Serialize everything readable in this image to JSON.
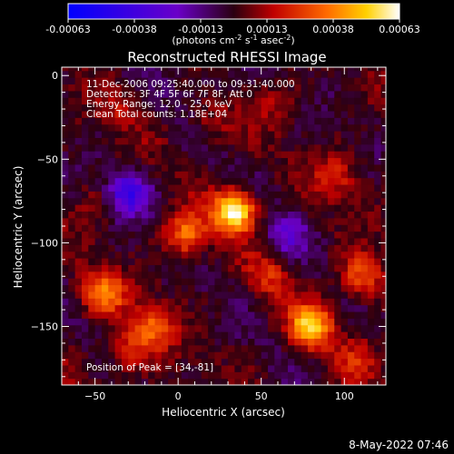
{
  "chart_data": {
    "type": "heatmap",
    "title": "Reconstructed RHESSI Image",
    "xlabel": "Heliocentric X (arcsec)",
    "ylabel": "Heliocentric Y (arcsec)",
    "xlim": [
      -70,
      125
    ],
    "ylim": [
      -185,
      5
    ],
    "xticks": [
      -50,
      0,
      50,
      100
    ],
    "yticks": [
      0,
      -50,
      -100,
      -150
    ],
    "colorbar": {
      "min": -0.00063,
      "max": 0.00063,
      "ticks": [
        "-0.00063",
        "-0.00038",
        "-0.00013",
        "0.00013",
        "0.00038",
        "0.00063"
      ],
      "units": "(photons cm",
      "units_exp1": "-2",
      "units_mid": " s",
      "units_exp2": "-1",
      "units_mid2": " asec",
      "units_exp3": "-2",
      "units_end": ")"
    },
    "annotations": [
      "11-Dec-2006 09:25:40.000 to 09:31:40.000",
      "Detectors: 3F 4F 5F 6F 7F 8F, Att 0",
      "Energy Range: 12.0 - 25.0 keV",
      "Clean     Total counts: 1.18E+04"
    ],
    "peak_label": "Position of Peak = [34,-81]",
    "peak": [
      34,
      -81
    ],
    "sources": [
      {
        "x": 34,
        "y": -81,
        "value": 0.00063
      },
      {
        "x": 80,
        "y": -150,
        "value": 0.0005
      },
      {
        "x": 5,
        "y": -95,
        "value": 0.00036
      },
      {
        "x": -45,
        "y": -130,
        "value": 0.00038
      },
      {
        "x": -15,
        "y": -150,
        "value": 0.0003
      },
      {
        "x": 110,
        "y": -120,
        "value": 0.00032
      },
      {
        "x": -30,
        "y": -165,
        "value": 0.00024
      },
      {
        "x": 95,
        "y": -60,
        "value": 0.0002
      },
      {
        "x": 55,
        "y": -120,
        "value": 0.00018
      },
      {
        "x": 20,
        "y": -30,
        "value": 0.00015
      },
      {
        "x": -35,
        "y": -20,
        "value": 0.00012
      },
      {
        "x": 60,
        "y": -15,
        "value": 0.0001
      },
      {
        "x": -50,
        "y": -75,
        "value": 8e-05
      },
      {
        "x": 110,
        "y": -170,
        "value": 0.00016
      },
      {
        "x": -30,
        "y": -70,
        "value": -0.0004
      },
      {
        "x": 65,
        "y": -95,
        "value": -0.0002
      },
      {
        "x": 20,
        "y": 0,
        "value": -0.00012
      }
    ]
  },
  "footer": {
    "timestamp": "8-May-2022 07:46"
  }
}
